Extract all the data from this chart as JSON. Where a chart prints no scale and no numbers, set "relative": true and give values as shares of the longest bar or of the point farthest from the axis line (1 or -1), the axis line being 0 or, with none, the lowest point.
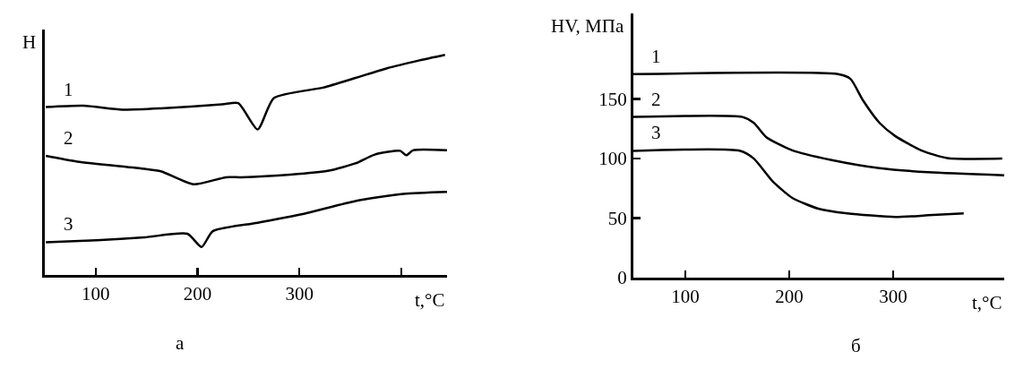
{
  "chart_data": [
    {
      "type": "line",
      "relative": true,
      "ylabel": "H",
      "xlabel": "t,°C",
      "annotations": [
        "а"
      ],
      "xlim": [
        50,
        445
      ],
      "xticks": [
        100,
        200,
        300,
        {
          "value": 400,
          "label": null
        }
      ],
      "line_style": "solid",
      "marker": "none",
      "legend": false,
      "series": [
        {
          "name": "1",
          "color": "#000000",
          "x": [
            51,
            88,
            126,
            164,
            224,
            240,
            259,
            275,
            323,
            355,
            386,
            418,
            443
          ],
          "values": [
            0.763,
            0.769,
            0.751,
            0.757,
            0.775,
            0.781,
            0.661,
            0.804,
            0.851,
            0.895,
            0.939,
            0.975,
            1.0
          ]
        },
        {
          "name": "2",
          "color": "#000000",
          "x": [
            51,
            82,
            148,
            164,
            196,
            228,
            243,
            291,
            329,
            355,
            374,
            399,
            405,
            412,
            445
          ],
          "values": [
            0.541,
            0.515,
            0.482,
            0.471,
            0.412,
            0.444,
            0.444,
            0.456,
            0.474,
            0.507,
            0.547,
            0.564,
            0.544,
            0.567,
            0.567
          ]
        },
        {
          "name": "3",
          "color": "#000000",
          "x": [
            51,
            101,
            148,
            190,
            204,
            215,
            259,
            307,
            355,
            402,
            445
          ],
          "values": [
            0.149,
            0.158,
            0.171,
            0.187,
            0.127,
            0.199,
            0.237,
            0.281,
            0.336,
            0.368,
            0.377
          ]
        }
      ]
    },
    {
      "type": "line",
      "ylabel": "HV, МПа",
      "xlabel": "t,°C",
      "annotations": [
        "б"
      ],
      "xlim": [
        50,
        407
      ],
      "xticks": [
        100,
        200,
        300
      ],
      "ylim": [
        0,
        222
      ],
      "yticks": [
        0,
        50,
        100,
        150
      ],
      "line_style": "solid",
      "marker": "none",
      "legend": false,
      "series": [
        {
          "name": "1",
          "color": "#000000",
          "x": [
            50,
            247,
            259,
            271,
            287,
            302,
            327,
            352,
            405
          ],
          "values": [
            171,
            171,
            167,
            149,
            130,
            119,
            107,
            100.5,
            100
          ]
        },
        {
          "name": "2",
          "color": "#000000",
          "x": [
            50,
            155,
            166,
            178,
            203,
            240,
            287,
            334,
            407
          ],
          "values": [
            135,
            135,
            130,
            118,
            107,
            99,
            92,
            88.6,
            86
          ]
        },
        {
          "name": "3",
          "color": "#000000",
          "x": [
            50,
            153,
            166,
            184,
            203,
            228,
            256,
            302,
            334,
            368
          ],
          "values": [
            106.5,
            106.5,
            100,
            81,
            67,
            58,
            54,
            51,
            52.4,
            54
          ]
        }
      ]
    }
  ]
}
